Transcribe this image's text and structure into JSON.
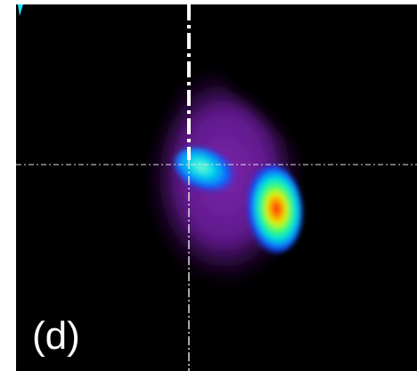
{
  "panel": {
    "label": "(d)"
  }
}
